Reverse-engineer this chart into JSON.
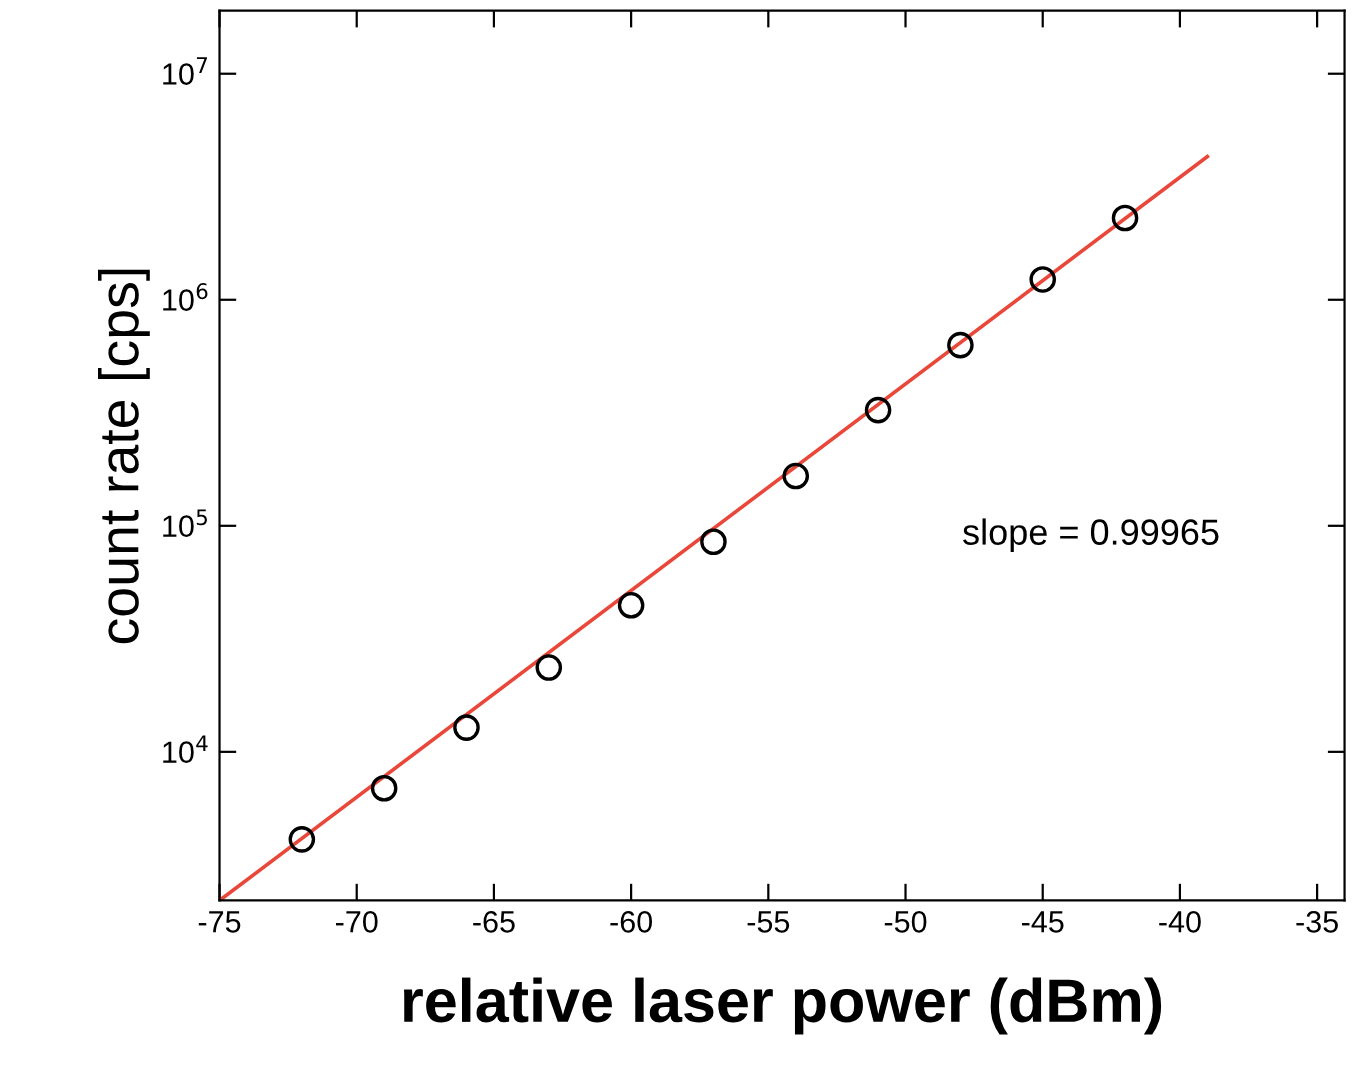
{
  "chart_data": {
    "type": "scatter",
    "xlabel": "relative laser power (dBm)",
    "ylabel": "count rate [cps]",
    "log": "y",
    "xlim": [
      -75,
      -34
    ],
    "ylim": [
      2200,
      19000000
    ],
    "xticks": [
      -75,
      -70,
      -65,
      -60,
      -55,
      -50,
      -45,
      -40,
      -35
    ],
    "yticks": [
      {
        "value": 10000,
        "label": "10$^{4}$"
      },
      {
        "value": 100000,
        "label": "10$^{5}$"
      },
      {
        "value": 1000000,
        "label": "10$^{6}$"
      },
      {
        "value": 10000000,
        "label": "10$^{7}$"
      }
    ],
    "grid": false,
    "legend": false,
    "marker": "circle",
    "series": [
      {
        "color": "#000000",
        "x": [
          -72,
          -69,
          -66,
          -63,
          -60,
          -57,
          -54,
          -51,
          -48,
          -45,
          -42
        ],
        "values": [
          4100,
          6900,
          12800,
          23600,
          44500,
          85000,
          166000,
          325000,
          630000,
          1230000,
          2300000
        ]
      },
      {
        "type": "line",
        "marker": "none",
        "color": "#e8473a",
        "line_style": "solid",
        "x": [
          -75,
          -39
        ],
        "values": [
          2200,
          4300000
        ]
      }
    ],
    "annotations": [
      "slope = 0.99965"
    ]
  }
}
